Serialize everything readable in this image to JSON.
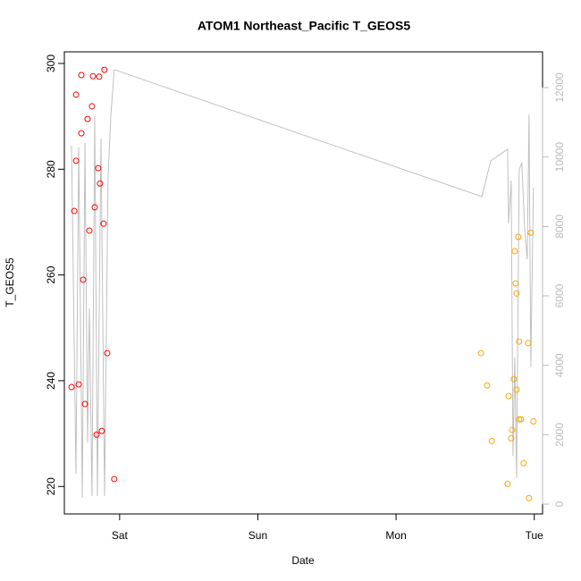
{
  "chart_data": {
    "type": "scatter",
    "title": "ATOM1 Northeast_Pacific T_GEOS5",
    "x_label": "Date",
    "y_label": "T_GEOS5",
    "xlim": [
      0.6,
      4.06
    ],
    "xticks": [
      {
        "value": 1,
        "label": "Sat"
      },
      {
        "value": 2,
        "label": "Sun"
      },
      {
        "value": 3,
        "label": "Mon"
      },
      {
        "value": 4,
        "label": "Tue"
      }
    ],
    "ylim": [
      214.8,
      302.2
    ],
    "yticks": [
      220,
      240,
      260,
      280,
      300
    ],
    "y2lim": [
      -283,
      13030
    ],
    "y2ticks": [
      0,
      2000,
      4000,
      6000,
      8000,
      10000,
      12000
    ],
    "y2_color": "#bbbbbb",
    "series": [
      {
        "type": "scatter",
        "color": "#ff0000",
        "x": [
          0.652,
          0.672,
          0.685,
          0.685,
          0.704,
          0.723,
          0.723,
          0.736,
          0.749,
          0.768,
          0.781,
          0.8,
          0.807,
          0.82,
          0.833,
          0.845,
          0.852,
          0.858,
          0.871,
          0.884,
          0.89,
          0.91,
          0.961
        ],
        "values": [
          238.8,
          272.1,
          294.1,
          281.6,
          239.3,
          286.8,
          297.8,
          259.1,
          235.6,
          289.5,
          268.4,
          291.9,
          297.6,
          272.8,
          229.8,
          280.2,
          297.5,
          277.3,
          230.5,
          269.7,
          298.8,
          245.2,
          221.4
        ]
      },
      {
        "type": "scatter",
        "color": "#ffa500",
        "x": [
          3.614,
          3.659,
          3.692,
          3.807,
          3.814,
          3.833,
          3.84,
          3.852,
          3.859,
          3.865,
          3.872,
          3.872,
          3.884,
          3.891,
          3.891,
          3.904,
          3.923,
          3.955,
          3.962,
          3.975,
          3.994
        ],
        "values": [
          245.2,
          239.1,
          228.6,
          220.5,
          237.1,
          229.1,
          230.7,
          240.3,
          264.5,
          258.4,
          256.5,
          238.3,
          267.2,
          247.4,
          232.7,
          232.7,
          224.4,
          247.1,
          217.8,
          268.0,
          232.3
        ]
      },
      {
        "type": "line",
        "axis": "y2",
        "color": "#c0c0c0",
        "x": [
          0.652,
          0.684,
          0.704,
          0.73,
          0.749,
          0.768,
          0.781,
          0.8,
          0.82,
          0.839,
          0.865,
          0.891,
          0.916,
          0.936,
          0.961,
          3.621,
          3.685,
          3.807,
          3.814,
          3.833,
          3.846,
          3.859,
          3.872,
          3.891,
          3.91,
          3.93,
          3.949,
          3.962,
          3.975,
          3.994
        ],
        "values": [
          10327,
          876,
          10276,
          180,
          10404,
          1777,
          5640,
          232,
          11177,
          232,
          10533,
          232,
          9374,
          11177,
          12516,
          8859,
          9889,
          10224,
          8086,
          9322,
          1391,
          4223,
          747,
          9632,
          9838,
          7958,
          7056,
          11228,
          3966,
          9116
        ]
      }
    ]
  }
}
